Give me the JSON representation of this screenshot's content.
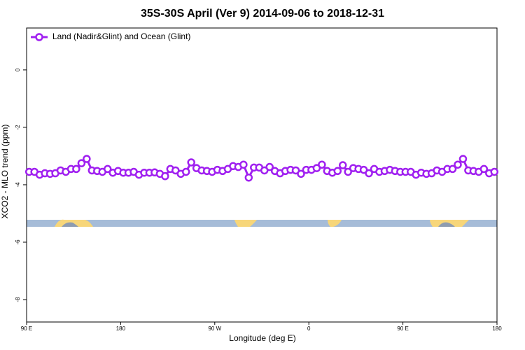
{
  "chart_data": {
    "type": "line",
    "title": "35S-30S April (Ver 9)   2014-09-06 to 2018-12-31",
    "x_label": "Longitude (deg E)",
    "y_label": "XCO2 - MLO trend (ppm)",
    "xlim": [
      90,
      540
    ],
    "ylim": [
      -8.78,
      1.46
    ],
    "xticks": [
      {
        "value": 90,
        "label": "90 E"
      },
      {
        "value": 180,
        "label": "180"
      },
      {
        "value": 270,
        "label": "90 W"
      },
      {
        "value": 360,
        "label": "0"
      },
      {
        "value": 450,
        "label": "90 E"
      },
      {
        "value": 540,
        "label": "180"
      }
    ],
    "yticks": [
      0,
      -2,
      -4,
      -6,
      -8
    ],
    "legend": "upper left",
    "x": [
      92.5,
      97.5,
      102.5,
      107.5,
      112.5,
      117.5,
      122.5,
      127.5,
      132.5,
      137.5,
      142.5,
      147.5,
      152.5,
      157.5,
      162.5,
      167.5,
      172.5,
      177.5,
      182.5,
      187.5,
      192.5,
      197.5,
      202.5,
      207.5,
      212.5,
      217.5,
      222.5,
      227.5,
      232.5,
      237.5,
      242.5,
      247.5,
      252.5,
      257.5,
      262.5,
      267.5,
      272.5,
      277.5,
      282.5,
      287.5,
      292.5,
      297.5,
      302.5,
      307.5,
      312.5,
      317.5,
      322.5,
      327.5,
      332.5,
      337.5,
      342.5,
      347.5,
      352.5,
      357.5,
      362.5,
      367.5,
      372.5,
      377.5,
      382.5,
      387.5,
      392.5,
      397.5,
      402.5,
      407.5,
      412.5,
      417.5,
      422.5,
      427.5,
      432.5,
      437.5,
      442.5,
      447.5,
      452.5,
      457.5,
      462.5,
      467.5,
      472.5,
      477.5,
      482.5,
      487.5,
      492.5,
      497.5,
      502.5,
      507.5,
      512.5,
      517.5,
      522.5,
      527.5,
      532.5,
      537.5
    ],
    "series": [
      {
        "name": "Land (Nadir&Glint) and Ocean (Glint)",
        "color": "#a020f0",
        "values": [
          -3.55,
          -3.55,
          -3.65,
          -3.6,
          -3.62,
          -3.6,
          -3.5,
          -3.55,
          -3.45,
          -3.45,
          -3.25,
          -3.1,
          -3.5,
          -3.52,
          -3.55,
          -3.45,
          -3.58,
          -3.52,
          -3.58,
          -3.58,
          -3.55,
          -3.65,
          -3.58,
          -3.58,
          -3.57,
          -3.62,
          -3.7,
          -3.45,
          -3.5,
          -3.62,
          -3.55,
          -3.22,
          -3.42,
          -3.5,
          -3.52,
          -3.55,
          -3.48,
          -3.52,
          -3.45,
          -3.35,
          -3.38,
          -3.3,
          -3.75,
          -3.4,
          -3.4,
          -3.5,
          -3.38,
          -3.52,
          -3.6,
          -3.52,
          -3.48,
          -3.5,
          -3.62,
          -3.48,
          -3.48,
          -3.42,
          -3.3,
          -3.52,
          -3.58,
          -3.52,
          -3.32,
          -3.55,
          -3.42,
          -3.45,
          -3.48,
          -3.6,
          -3.45,
          -3.55,
          -3.52,
          -3.48,
          -3.52,
          -3.55,
          -3.55,
          -3.55,
          -3.65,
          -3.58,
          -3.62,
          -3.6,
          -3.5,
          -3.55,
          -3.45,
          -3.45,
          -3.3,
          -3.1,
          -3.5,
          -3.52,
          -3.55,
          -3.45,
          -3.6,
          -3.55
        ]
      }
    ]
  }
}
